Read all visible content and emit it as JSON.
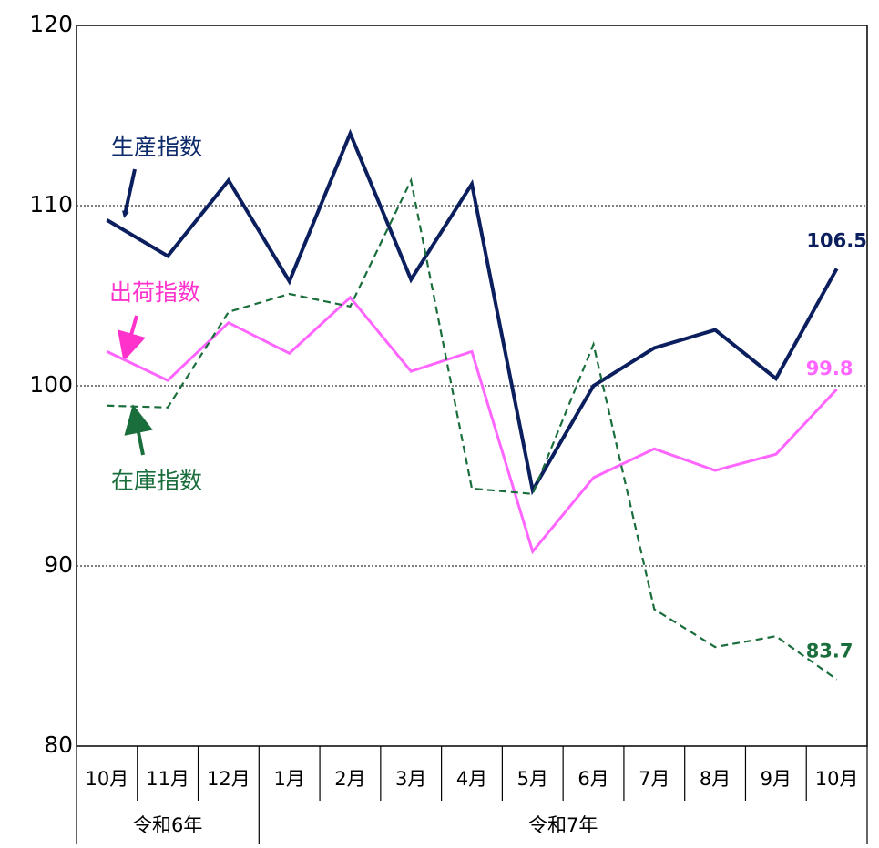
{
  "chart_data": {
    "type": "line",
    "categories": [
      "10月",
      "11月",
      "12月",
      "1月",
      "2月",
      "3月",
      "4月",
      "5月",
      "6月",
      "7月",
      "8月",
      "9月",
      "10月"
    ],
    "category_groups": [
      "令和6年",
      "令和7年"
    ],
    "ylim": [
      80,
      120
    ],
    "yticks": [
      80,
      90,
      100,
      110,
      120
    ],
    "grid": true,
    "series": [
      {
        "name": "生産指数",
        "color": "#0b1f5e",
        "line_style": "solid",
        "values": [
          109.2,
          107.2,
          111.4,
          105.8,
          114.0,
          105.9,
          111.2,
          94.2,
          100.0,
          102.1,
          103.1,
          100.4,
          106.5
        ]
      },
      {
        "name": "出荷指数",
        "color": "#ff66ff",
        "line_style": "solid",
        "values": [
          101.9,
          100.3,
          103.5,
          101.8,
          104.9,
          100.8,
          101.9,
          90.8,
          94.9,
          96.5,
          95.3,
          96.2,
          99.8
        ]
      },
      {
        "name": "在庫指数",
        "color": "#1a6e3c",
        "line_style": "dashed",
        "values": [
          98.9,
          98.8,
          104.1,
          105.1,
          104.4,
          111.4,
          94.3,
          94.0,
          102.3,
          87.6,
          85.5,
          86.1,
          83.7
        ]
      }
    ]
  }
}
